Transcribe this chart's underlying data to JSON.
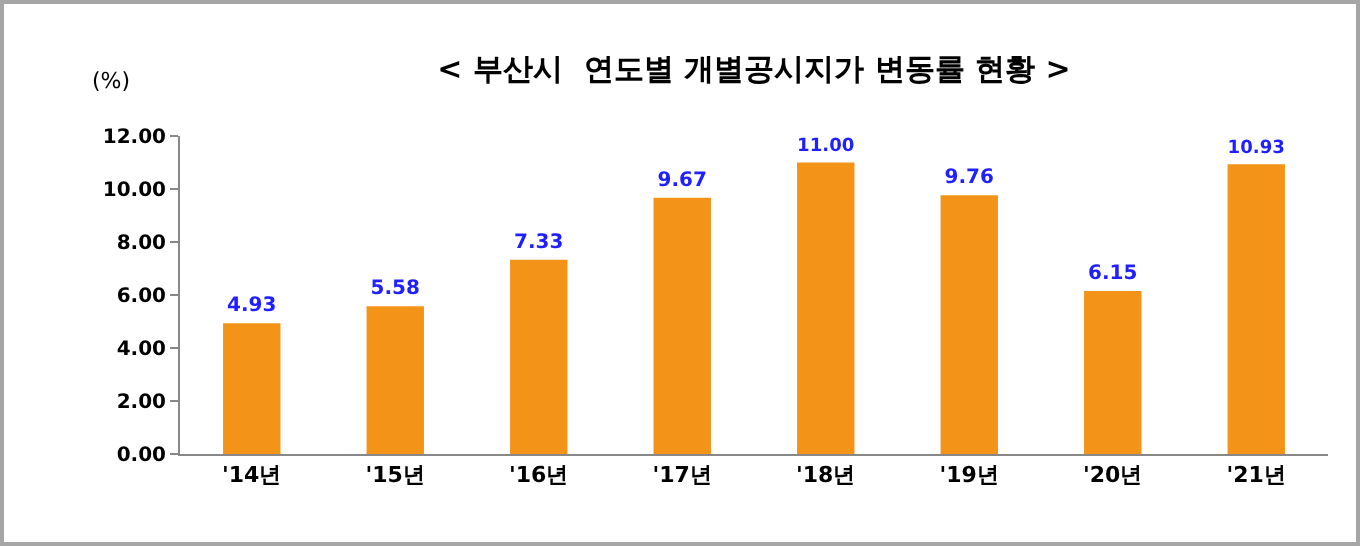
{
  "chart_data": {
    "type": "bar",
    "title": "< 부산시  연도별 개별공시지가 변동률 현황 >",
    "ylabel": "(%)",
    "categories": [
      "'14년",
      "'15년",
      "'16년",
      "'17년",
      "'18년",
      "'19년",
      "'20년",
      "'21년"
    ],
    "values": [
      4.93,
      5.58,
      7.33,
      9.67,
      11.0,
      9.76,
      6.15,
      10.93
    ],
    "color": "#f39419",
    "ylim": [
      0,
      12
    ],
    "yticks": [
      {
        "value": 0,
        "label": "0.00"
      },
      {
        "value": 2,
        "label": "2.00"
      },
      {
        "value": 4,
        "label": "4.00"
      },
      {
        "value": 6,
        "label": "6.00"
      },
      {
        "value": 8,
        "label": "8.00"
      },
      {
        "value": 10,
        "label": "10.00"
      },
      {
        "value": 12,
        "label": "12.00"
      }
    ],
    "value_labels": [
      "4.93",
      "5.58",
      "7.33",
      "9.67",
      "11.00",
      "9.76",
      "6.15",
      "10.93"
    ],
    "grid": false,
    "legend": false
  }
}
